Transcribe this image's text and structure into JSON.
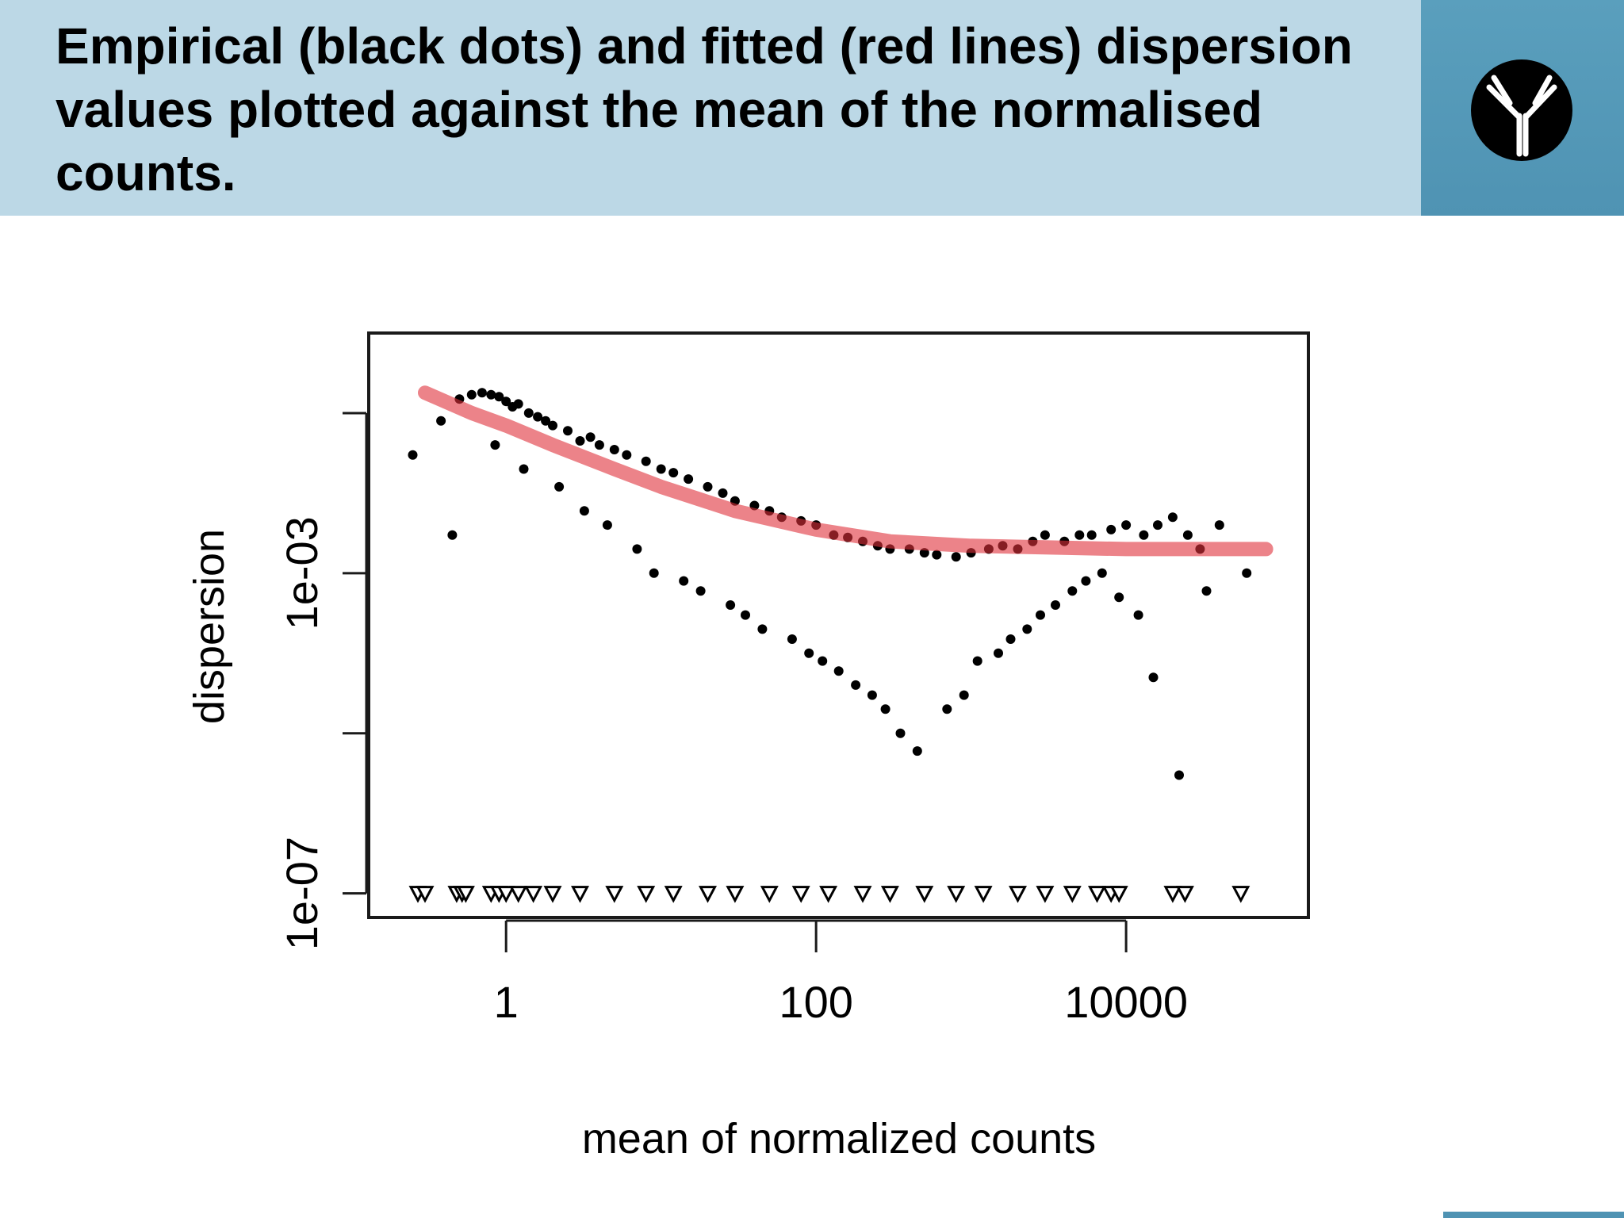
{
  "header": {
    "title": "Empirical (black dots) and fitted (red lines) dispersion values plotted against the mean of the normalised counts.",
    "logo_icon": "antibody-icon",
    "background_color": "#bcd8e6",
    "accent_color": "#4f93b3"
  },
  "chart_data": {
    "type": "scatter",
    "xlabel": "mean of normalized counts",
    "ylabel": "dispersion",
    "x_scale": "log",
    "y_scale": "log",
    "xlim": [
      0.13,
      150000
    ],
    "ylim": [
      5e-08,
      1.0
    ],
    "x_ticks": [
      {
        "value": 1,
        "label": "1"
      },
      {
        "value": 100,
        "label": "100"
      },
      {
        "value": 10000,
        "label": "10000"
      }
    ],
    "y_ticks": [
      {
        "value": 1e-07,
        "label": "1e-07"
      },
      {
        "value": 1e-05,
        "label": ""
      },
      {
        "value": 0.001,
        "label": "1e-03"
      },
      {
        "value": 0.1,
        "label": ""
      }
    ],
    "grid": false,
    "legend": "none",
    "point_color": "#000000",
    "fit_color": "#e0303a",
    "series": [
      {
        "kind": "points",
        "description_note": "",
        "x": [
          0.25,
          0.38,
          0.45,
          0.5,
          0.6,
          0.7,
          0.8,
          0.9,
          1.0,
          1.1,
          1.2,
          1.4,
          1.6,
          1.8,
          2.0,
          2.5,
          3.0,
          3.5,
          4.0,
          5.0,
          6.0,
          8.0,
          10,
          12,
          15,
          20,
          25,
          30,
          40,
          50,
          60,
          80,
          100,
          130,
          160,
          200,
          250,
          300,
          400,
          500,
          600,
          800,
          1000,
          1300,
          1600,
          2000,
          2500,
          3000,
          4000,
          5000,
          6000,
          8000,
          10000,
          13000,
          16000,
          20000,
          25000,
          30000,
          40000,
          60000,
          0.85,
          1.3,
          2.2,
          3.2,
          4.5,
          7.0,
          9.0,
          14,
          18,
          28,
          35,
          45,
          70,
          90,
          110,
          140,
          180,
          230,
          280,
          350,
          450,
          700,
          900,
          1100,
          1500,
          1800,
          2300,
          2800,
          3500,
          4500,
          5500,
          7000,
          9000,
          12000,
          15000,
          22000,
          33000
        ],
        "y": [
          0.03,
          0.08,
          0.003,
          0.15,
          0.17,
          0.18,
          0.17,
          0.16,
          0.14,
          0.12,
          0.13,
          0.1,
          0.09,
          0.08,
          0.07,
          0.06,
          0.045,
          0.05,
          0.04,
          0.035,
          0.03,
          0.025,
          0.02,
          0.018,
          0.015,
          0.012,
          0.01,
          0.008,
          0.007,
          0.006,
          0.005,
          0.0045,
          0.004,
          0.003,
          0.0028,
          0.0025,
          0.0022,
          0.002,
          0.002,
          0.0018,
          0.0017,
          0.0016,
          0.0018,
          0.002,
          0.0022,
          0.002,
          0.0025,
          0.003,
          0.0025,
          0.003,
          0.003,
          0.0035,
          0.004,
          0.003,
          0.004,
          0.005,
          0.003,
          0.002,
          0.004,
          0.001,
          0.04,
          0.02,
          0.012,
          0.006,
          0.004,
          0.002,
          0.001,
          0.0008,
          0.0006,
          0.0004,
          0.0003,
          0.0002,
          0.00015,
          0.0001,
          8e-05,
          6e-05,
          4e-05,
          3e-05,
          2e-05,
          1e-05,
          6e-06,
          2e-05,
          3e-05,
          8e-05,
          0.0001,
          0.00015,
          0.0002,
          0.0003,
          0.0004,
          0.0006,
          0.0008,
          0.001,
          0.0005,
          0.0003,
          5e-05,
          3e-06,
          0.0006
        ]
      },
      {
        "kind": "fit",
        "x": [
          0.3,
          0.6,
          1,
          2,
          5,
          10,
          30,
          100,
          300,
          1000,
          3000,
          10000,
          30000,
          80000
        ],
        "y": [
          0.18,
          0.1,
          0.07,
          0.04,
          0.02,
          0.012,
          0.006,
          0.0035,
          0.0025,
          0.0022,
          0.0021,
          0.002,
          0.002,
          0.002
        ]
      },
      {
        "kind": "zero-dispersion-triangles",
        "y_value": 1e-07,
        "x": [
          0.27,
          0.3,
          0.48,
          0.52,
          0.55,
          0.8,
          0.9,
          1.0,
          1.2,
          1.5,
          2.0,
          3.0,
          5.0,
          8.0,
          12,
          20,
          30,
          50,
          80,
          120,
          200,
          300,
          500,
          800,
          1200,
          2000,
          3000,
          4500,
          6500,
          8000,
          9000,
          20000,
          24000,
          55000
        ]
      }
    ]
  }
}
